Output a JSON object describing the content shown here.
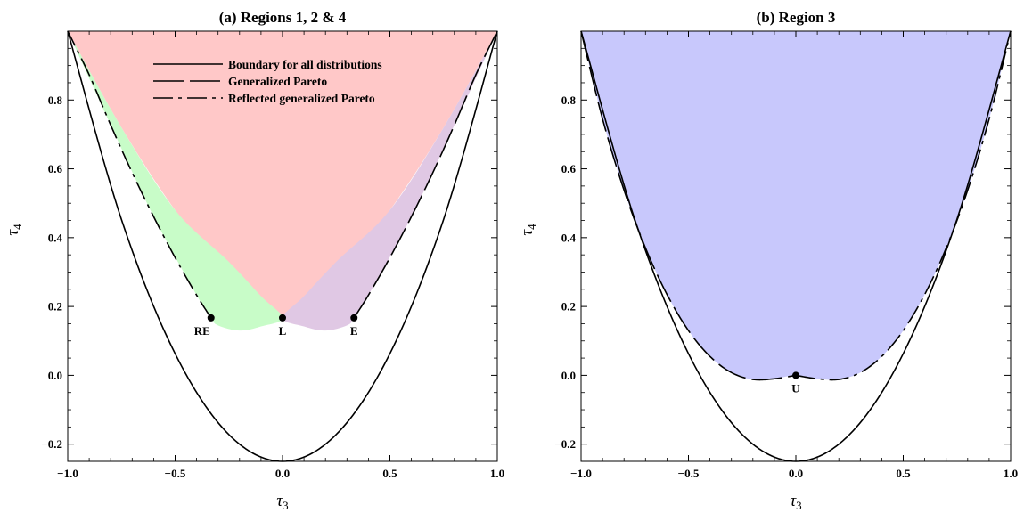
{
  "chart_data": [
    {
      "type": "area",
      "title": "(a) Regions 1, 2 & 4",
      "xlabel": "τ",
      "xlabel_sub": "3",
      "ylabel": "τ",
      "ylabel_sub": "4",
      "xlim": [
        -1.0,
        1.0
      ],
      "ylim": [
        -0.25,
        1.0
      ],
      "xticks": [
        -1.0,
        -0.5,
        0.0,
        0.5,
        1.0
      ],
      "xtick_labels": [
        "−1.0",
        "−0.5",
        "0.0",
        "0.5",
        "1.0"
      ],
      "yticks": [
        -0.2,
        0.0,
        0.2,
        0.4,
        0.6,
        0.8
      ],
      "ytick_labels": [
        "−0.2",
        "0.0",
        "0.2",
        "0.4",
        "0.6",
        "0.8"
      ],
      "legend": {
        "placement": "top",
        "entries": [
          {
            "label": "Boundary for all distributions",
            "style": "solid"
          },
          {
            "label": "Generalized Pareto",
            "style": "long-dash"
          },
          {
            "label": "Reflected generalized Pareto",
            "style": "dash-dot"
          }
        ]
      },
      "series": [
        {
          "name": "Boundary for all distributions",
          "style": "solid",
          "x": [
            -1.0,
            -0.75,
            -0.5,
            -0.25,
            0.0,
            0.25,
            0.5,
            0.75,
            1.0
          ],
          "y": [
            1.0,
            0.453,
            0.063,
            -0.172,
            -0.25,
            -0.172,
            0.063,
            0.453,
            1.0
          ]
        },
        {
          "name": "Generalized Pareto",
          "style": "long-dash",
          "x": [
            0.333,
            0.4,
            0.5,
            0.6,
            0.7,
            0.8,
            0.9,
            1.0
          ],
          "y": [
            0.167,
            0.233,
            0.342,
            0.461,
            0.589,
            0.727,
            0.873,
            1.0
          ]
        },
        {
          "name": "Reflected generalized Pareto",
          "style": "dash-dot",
          "x": [
            -0.333,
            -0.4,
            -0.5,
            -0.6,
            -0.7,
            -0.8,
            -0.9,
            -1.0
          ],
          "y": [
            0.167,
            0.233,
            0.342,
            0.461,
            0.589,
            0.727,
            0.873,
            1.0
          ]
        }
      ],
      "regions": [
        {
          "color": "#ffc8c8",
          "top_y": 1.0,
          "lower_x": [
            -1.0,
            -0.75,
            -0.5,
            -0.25,
            0.0,
            0.25,
            0.5,
            0.75,
            1.0
          ],
          "lower_y": [
            1.0,
            0.72,
            0.48,
            0.29,
            0.167,
            0.29,
            0.48,
            0.72,
            1.0
          ]
        },
        {
          "color": "#c8fcc8",
          "x": [
            -1.0,
            -0.8,
            -0.6,
            -0.4,
            -0.333,
            -0.3,
            -0.2,
            -0.1,
            0.0,
            -0.1,
            -0.25,
            -0.5,
            -0.75,
            -1.0
          ],
          "y": [
            1.0,
            0.727,
            0.461,
            0.233,
            0.167,
            0.145,
            0.13,
            0.142,
            0.167,
            0.23,
            0.33,
            0.48,
            0.72,
            1.0
          ]
        },
        {
          "color": "#e0c8e4",
          "x": [
            1.0,
            0.8,
            0.6,
            0.4,
            0.333,
            0.3,
            0.2,
            0.1,
            0.0,
            0.1,
            0.25,
            0.5,
            0.75,
            1.0
          ],
          "y": [
            1.0,
            0.727,
            0.461,
            0.233,
            0.167,
            0.145,
            0.13,
            0.142,
            0.167,
            0.23,
            0.33,
            0.48,
            0.72,
            1.0
          ]
        }
      ],
      "points": [
        {
          "label": "RE",
          "x": -0.333,
          "y": 0.167
        },
        {
          "label": "L",
          "x": 0.0,
          "y": 0.167
        },
        {
          "label": "E",
          "x": 0.333,
          "y": 0.167
        }
      ]
    },
    {
      "type": "area",
      "title": "(b) Region 3",
      "xlabel": "τ",
      "xlabel_sub": "3",
      "ylabel": "τ",
      "ylabel_sub": "4",
      "xlim": [
        -1.0,
        1.0
      ],
      "ylim": [
        -0.25,
        1.0
      ],
      "xticks": [
        -1.0,
        -0.5,
        0.0,
        0.5,
        1.0
      ],
      "xtick_labels": [
        "−1.0",
        "−0.5",
        "0.0",
        "0.5",
        "1.0"
      ],
      "yticks": [
        -0.2,
        0.0,
        0.2,
        0.4,
        0.6,
        0.8
      ],
      "ytick_labels": [
        "−0.2",
        "0.0",
        "0.2",
        "0.4",
        "0.6",
        "0.8"
      ],
      "series": [
        {
          "style": "solid",
          "x": [
            -1.0,
            -0.75,
            -0.5,
            -0.25,
            0.0,
            0.25,
            0.5,
            0.75,
            1.0
          ],
          "y": [
            1.0,
            0.453,
            0.063,
            -0.172,
            -0.25,
            -0.172,
            0.063,
            0.453,
            1.0
          ]
        },
        {
          "style": "long-dash",
          "x": [
            -1.0,
            -0.9,
            -0.8,
            -0.7,
            -0.6,
            -0.5,
            -0.4,
            -0.3,
            -0.2,
            -0.1,
            0.0
          ],
          "y": [
            1.0,
            0.745,
            0.538,
            0.37,
            0.235,
            0.13,
            0.055,
            0.008,
            -0.012,
            -0.01,
            0.0
          ]
        },
        {
          "style": "dash-dot",
          "x": [
            0.0,
            0.1,
            0.2,
            0.3,
            0.4,
            0.5,
            0.6,
            0.7,
            0.8,
            0.9,
            1.0
          ],
          "y": [
            0.0,
            -0.01,
            -0.012,
            0.008,
            0.055,
            0.13,
            0.235,
            0.37,
            0.538,
            0.745,
            1.0
          ]
        }
      ],
      "regions": [
        {
          "color": "#c8c8fc",
          "top_y": 1.0,
          "lower_x": [
            -1.0,
            -0.9,
            -0.8,
            -0.7,
            -0.6,
            -0.5,
            -0.4,
            -0.3,
            -0.2,
            -0.1,
            0.0,
            0.1,
            0.2,
            0.3,
            0.4,
            0.5,
            0.6,
            0.7,
            0.8,
            0.9,
            1.0
          ],
          "lower_y": [
            1.0,
            0.745,
            0.538,
            0.37,
            0.235,
            0.13,
            0.055,
            0.008,
            -0.012,
            -0.01,
            0.0,
            -0.01,
            -0.012,
            0.008,
            0.055,
            0.13,
            0.235,
            0.37,
            0.538,
            0.745,
            1.0
          ]
        }
      ],
      "points": [
        {
          "label": "U",
          "x": 0.0,
          "y": 0.0
        }
      ]
    }
  ]
}
